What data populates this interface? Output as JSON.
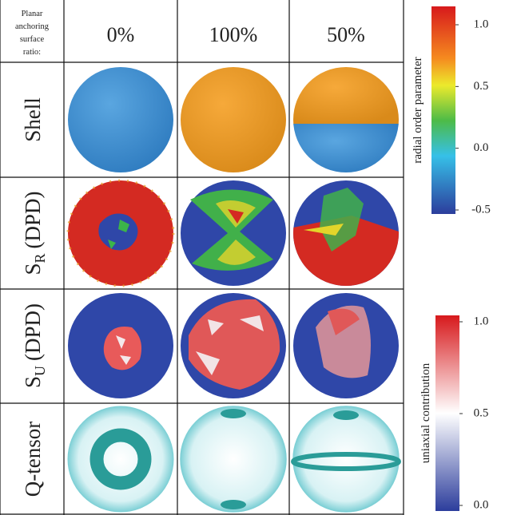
{
  "header": {
    "label_lines": [
      "Planar",
      "anchoring",
      "surface",
      "ratio:"
    ],
    "columns": [
      "0%",
      "100%",
      "50%"
    ]
  },
  "rows": [
    {
      "label": "Shell"
    },
    {
      "label": "S",
      "subscript": "R",
      "suffix": "(DPD)"
    },
    {
      "label": "S",
      "subscript": "U",
      "suffix": "(DPD)"
    },
    {
      "label": "Q-tensor"
    }
  ],
  "colorbars": [
    {
      "title": "radial order parameter",
      "lim": [
        -0.5,
        1.0
      ],
      "ticks": [
        {
          "value": 1.0,
          "label": "1.0"
        },
        0.5,
        {
          "value": 0.0,
          "label": "0.0"
        },
        -0.5
      ]
    },
    {
      "title": "uniaxial contribution",
      "lim": [
        0.0,
        1.0
      ],
      "ticks": [
        {
          "value": 1.0,
          "label": "1.0"
        },
        0.5,
        {
          "value": 0.0,
          "label": "0.0"
        }
      ]
    }
  ]
}
